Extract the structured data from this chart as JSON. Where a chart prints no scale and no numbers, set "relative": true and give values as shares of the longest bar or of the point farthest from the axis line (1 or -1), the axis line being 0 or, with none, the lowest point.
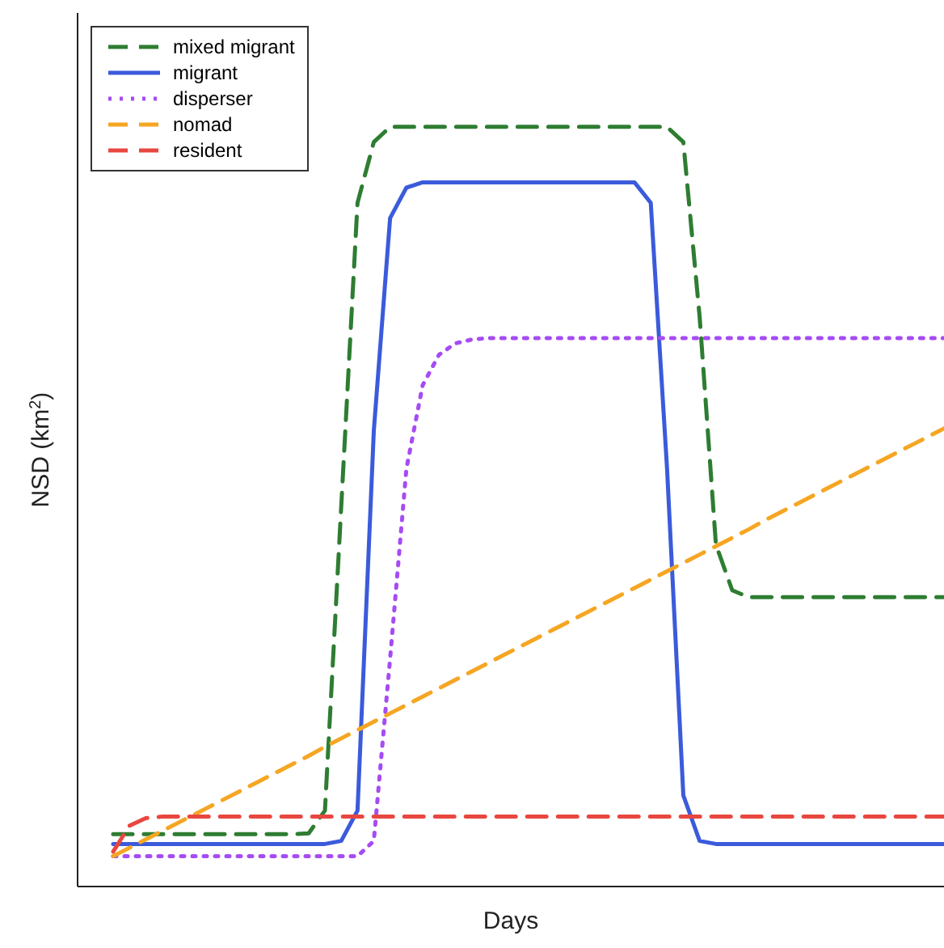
{
  "chart_data": {
    "type": "line",
    "relative": true,
    "xlabel": "Days",
    "ylabel": "NSD (km$^{2}$)",
    "legend": "top left",
    "grid": false,
    "categories": [
      null,
      null,
      null,
      null,
      null,
      null,
      null,
      null,
      null,
      null,
      null,
      null,
      null,
      null,
      null,
      null,
      null,
      null,
      null,
      null,
      null,
      null,
      null,
      null,
      null,
      null,
      null,
      null,
      null,
      null,
      null,
      null,
      null,
      null,
      null,
      null,
      null,
      null,
      null,
      null,
      null,
      null,
      null,
      null,
      null,
      null,
      null,
      null,
      null,
      null,
      null,
      null
    ],
    "series": [
      {
        "name": "mixed migrant",
        "color": "#2e7d32",
        "line_style": "dashed",
        "values": [
          0.069,
          0.069,
          0.069,
          0.069,
          0.069,
          0.069,
          0.069,
          0.069,
          0.069,
          0.069,
          0.069,
          0.069,
          0.07,
          0.1,
          0.5,
          0.9,
          0.98,
          1,
          1,
          1,
          1,
          1,
          1,
          1,
          1,
          1,
          1,
          1,
          1,
          1,
          1,
          1,
          1,
          1,
          1,
          0.98,
          0.75,
          0.45,
          0.39,
          0.381,
          0.381,
          0.381,
          0.381,
          0.381,
          0.381,
          0.381,
          0.381,
          0.381,
          0.381,
          0.381,
          0.381,
          0.381
        ]
      },
      {
        "name": "migrant",
        "color": "#3b5bdb",
        "line_style": "solid",
        "values": [
          0.056,
          0.056,
          0.056,
          0.056,
          0.056,
          0.056,
          0.056,
          0.056,
          0.056,
          0.056,
          0.056,
          0.056,
          0.056,
          0.056,
          0.06,
          0.1,
          0.6,
          0.88,
          0.92,
          0.927,
          0.927,
          0.927,
          0.927,
          0.927,
          0.927,
          0.927,
          0.927,
          0.927,
          0.927,
          0.927,
          0.927,
          0.927,
          0.927,
          0.9,
          0.55,
          0.12,
          0.06,
          0.056,
          0.056,
          0.056,
          0.056,
          0.056,
          0.056,
          0.056,
          0.056,
          0.056,
          0.056,
          0.056,
          0.056,
          0.056,
          0.056,
          0.056
        ]
      },
      {
        "name": "disperser",
        "color": "#a64bf4",
        "line_style": "dotted",
        "values": [
          0.04,
          0.04,
          0.04,
          0.04,
          0.04,
          0.04,
          0.04,
          0.04,
          0.04,
          0.04,
          0.04,
          0.04,
          0.04,
          0.04,
          0.04,
          0.04,
          0.06,
          0.3,
          0.55,
          0.66,
          0.7,
          0.715,
          0.72,
          0.722,
          0.722,
          0.722,
          0.722,
          0.722,
          0.722,
          0.722,
          0.722,
          0.722,
          0.722,
          0.722,
          0.722,
          0.722,
          0.722,
          0.722,
          0.722,
          0.722,
          0.722,
          0.722,
          0.722,
          0.722,
          0.722,
          0.722,
          0.722,
          0.722,
          0.722,
          0.722,
          0.722,
          0.722
        ]
      },
      {
        "name": "nomad",
        "color": "#f5a623",
        "line_style": "dashed",
        "values": [
          0.04,
          0.051,
          0.062,
          0.073,
          0.084,
          0.095,
          0.106,
          0.117,
          0.128,
          0.139,
          0.15,
          0.161,
          0.172,
          0.184,
          0.195,
          0.206,
          0.217,
          0.228,
          0.239,
          0.25,
          0.261,
          0.272,
          0.283,
          0.294,
          0.305,
          0.316,
          0.327,
          0.338,
          0.349,
          0.36,
          0.371,
          0.382,
          0.393,
          0.404,
          0.415,
          0.426,
          0.437,
          0.448,
          0.459,
          0.47,
          0.482,
          0.493,
          0.504,
          0.515,
          0.526,
          0.537,
          0.548,
          0.559,
          0.57,
          0.581,
          0.592,
          0.603
        ]
      },
      {
        "name": "resident",
        "color": "#e8473f",
        "line_style": "dashed",
        "values": [
          0.046,
          0.08,
          0.09,
          0.092,
          0.092,
          0.092,
          0.092,
          0.092,
          0.092,
          0.092,
          0.092,
          0.092,
          0.092,
          0.092,
          0.092,
          0.092,
          0.092,
          0.092,
          0.092,
          0.092,
          0.092,
          0.092,
          0.092,
          0.092,
          0.092,
          0.092,
          0.092,
          0.092,
          0.092,
          0.092,
          0.092,
          0.092,
          0.092,
          0.092,
          0.092,
          0.092,
          0.092,
          0.092,
          0.092,
          0.092,
          0.092,
          0.092,
          0.092,
          0.092,
          0.092,
          0.092,
          0.092,
          0.092,
          0.092,
          0.092,
          0.092,
          0.092
        ]
      }
    ]
  }
}
